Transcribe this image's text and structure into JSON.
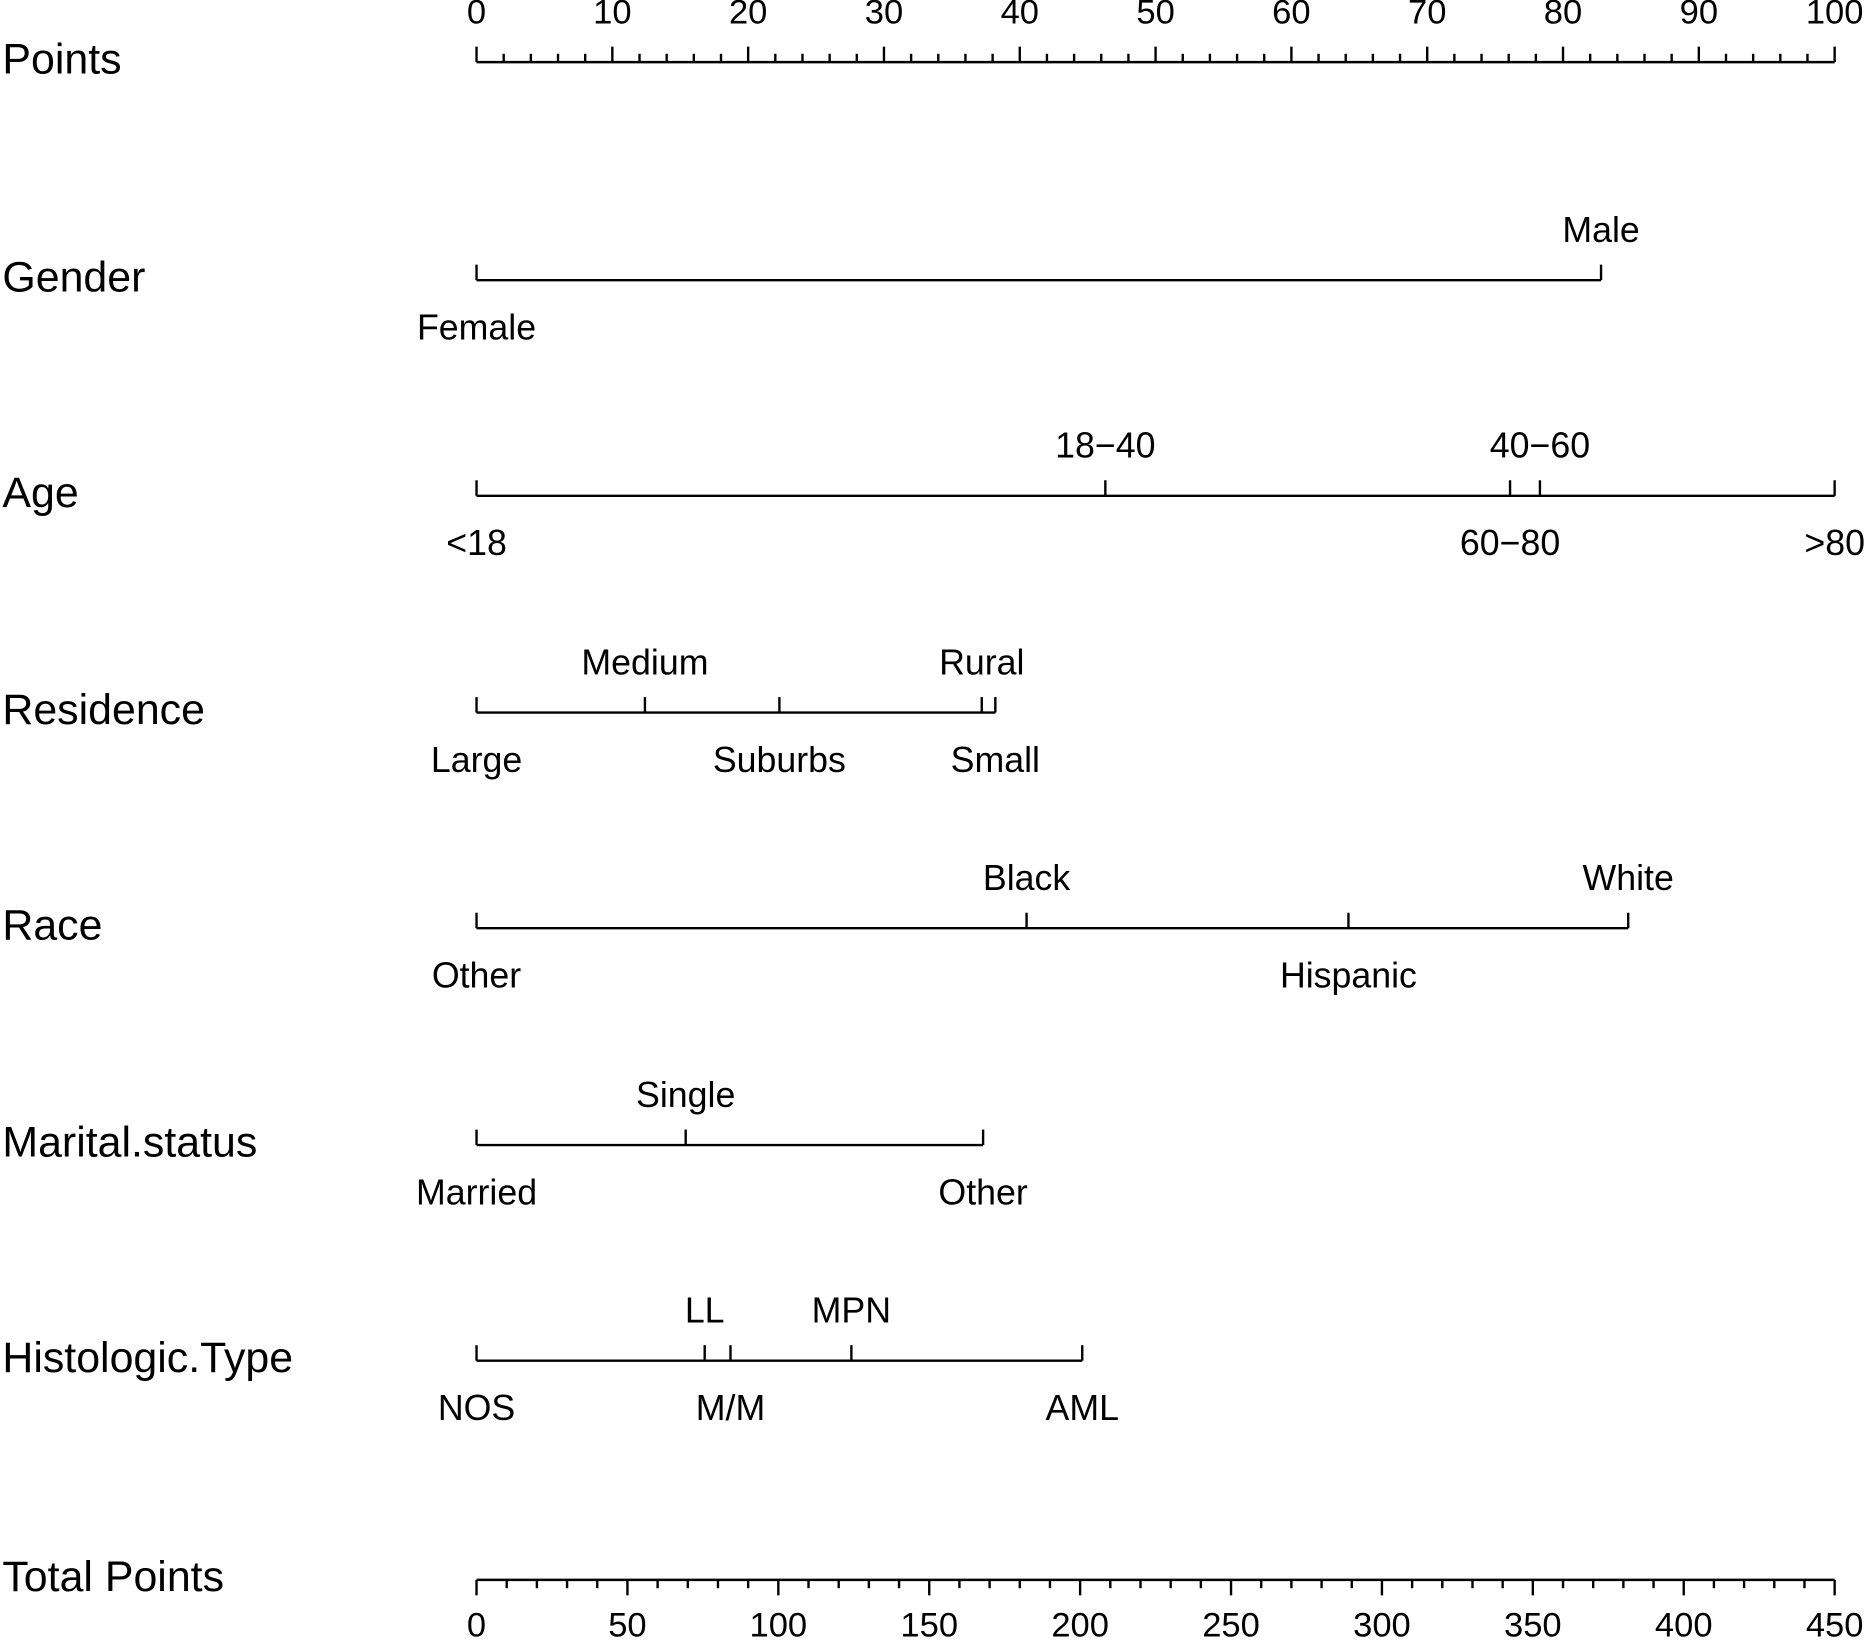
{
  "chart_data": {
    "type": "nomogram",
    "points_axis": {
      "label": "Points",
      "xlim": [
        0,
        100
      ],
      "xticks": [
        0,
        10,
        20,
        30,
        40,
        50,
        60,
        70,
        80,
        90,
        100
      ],
      "xminorticks": [
        2,
        4,
        6,
        8,
        12,
        14,
        16,
        18,
        22,
        24,
        26,
        28,
        32,
        34,
        36,
        38,
        42,
        44,
        46,
        48,
        52,
        54,
        56,
        58,
        62,
        64,
        66,
        68,
        72,
        74,
        76,
        78,
        82,
        84,
        86,
        88,
        92,
        94,
        96,
        98
      ]
    },
    "variables": [
      {
        "name": "Gender",
        "levels": [
          {
            "label": "Female",
            "points": 0
          },
          {
            "label": "Male",
            "points": 82.8
          }
        ]
      },
      {
        "name": "Age",
        "levels": [
          {
            "label": "<18",
            "points": 0
          },
          {
            "label": "18−40",
            "points": 46.3
          },
          {
            "label": "40−60",
            "points": 78.3
          },
          {
            "label": "60−80",
            "points": 76.1
          },
          {
            "label": ">80",
            "points": 100
          }
        ]
      },
      {
        "name": "Residence",
        "levels": [
          {
            "label": "Large",
            "points": 0
          },
          {
            "label": "Medium",
            "points": 12.4
          },
          {
            "label": "Suburbs",
            "points": 22.3
          },
          {
            "label": "Rural",
            "points": 37.2
          },
          {
            "label": "Small",
            "points": 38.2
          }
        ]
      },
      {
        "name": "Race",
        "levels": [
          {
            "label": "Other",
            "points": 0
          },
          {
            "label": "Black",
            "points": 40.5
          },
          {
            "label": "Hispanic",
            "points": 64.2
          },
          {
            "label": "White",
            "points": 84.8
          }
        ]
      },
      {
        "name": "Marital.status",
        "levels": [
          {
            "label": "Married",
            "points": 0
          },
          {
            "label": "Single",
            "points": 15.4
          },
          {
            "label": "Other",
            "points": 37.3
          }
        ]
      },
      {
        "name": "Histologic.Type",
        "levels": [
          {
            "label": "NOS",
            "points": 0
          },
          {
            "label": "LL",
            "points": 16.8
          },
          {
            "label": "M/M",
            "points": 18.7
          },
          {
            "label": "MPN",
            "points": 27.6
          },
          {
            "label": "AML",
            "points": 44.6
          }
        ]
      }
    ],
    "total_axis": {
      "label": "Total Points",
      "xlim": [
        0,
        450
      ],
      "xticks": [
        0,
        50,
        100,
        150,
        200,
        250,
        300,
        350,
        400,
        450
      ],
      "xminorticks": [
        10,
        20,
        30,
        40,
        60,
        70,
        80,
        90,
        110,
        120,
        130,
        140,
        160,
        170,
        180,
        190,
        210,
        220,
        230,
        240,
        260,
        270,
        280,
        290,
        310,
        320,
        330,
        340,
        360,
        370,
        380,
        390,
        410,
        420,
        430,
        440
      ]
    }
  }
}
